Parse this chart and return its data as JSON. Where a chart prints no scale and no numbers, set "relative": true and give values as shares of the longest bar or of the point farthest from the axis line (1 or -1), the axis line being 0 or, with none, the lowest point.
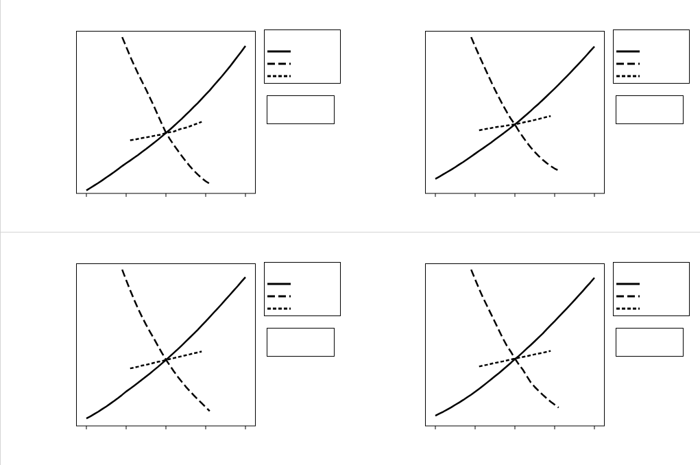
{
  "chart_data": [
    {
      "type": "line",
      "relative": true,
      "categories": [
        null,
        null,
        null,
        null,
        null,
        null,
        null,
        null,
        null,
        null,
        null,
        null,
        null,
        null,
        null,
        null,
        null,
        null,
        null,
        null,
        null,
        null,
        null,
        null,
        null,
        null,
        null,
        null,
        null,
        null,
        null,
        null,
        null,
        null,
        null,
        null,
        null,
        null,
        null,
        null,
        null
      ],
      "series": [
        {
          "color": "#000000",
          "line_style": "solid",
          "values": [
            0.019,
            0.035,
            0.051,
            0.067,
            0.084,
            0.102,
            0.119,
            0.137,
            0.156,
            0.175,
            0.193,
            0.21,
            0.228,
            0.246,
            0.265,
            0.284,
            0.304,
            0.324,
            0.344,
            0.365,
            0.387,
            0.408,
            0.431,
            0.455,
            0.478,
            0.503,
            0.527,
            0.553,
            0.578,
            0.605,
            0.632,
            0.659,
            0.689,
            0.718,
            0.747,
            0.778,
            0.809,
            0.842,
            0.875,
            0.908,
            0.943
          ]
        },
        {
          "color": "#000000",
          "line_style": "dashed",
          "values": [
            null,
            null,
            null,
            null,
            null,
            null,
            null,
            null,
            null,
            1,
            0.939,
            0.877,
            0.821,
            0.766,
            0.715,
            0.665,
            0.611,
            0.557,
            0.5,
            0.443,
            0.389,
            0.347,
            0.309,
            0.274,
            0.239,
            0.206,
            0.175,
            0.146,
            0.121,
            0.098,
            0.078,
            0.062,
            null,
            null,
            null,
            null,
            null,
            null,
            null,
            null,
            null
          ]
        },
        {
          "color": "#000000",
          "line_style": "dotted",
          "values": [
            null,
            null,
            null,
            null,
            null,
            null,
            null,
            null,
            null,
            null,
            null,
            0.34,
            0.344,
            0.349,
            0.354,
            0.358,
            0.363,
            0.368,
            0.373,
            0.377,
            0.387,
            0.392,
            0.396,
            0.406,
            0.415,
            0.42,
            0.429,
            0.439,
            0.448,
            0.458,
            null,
            null,
            null,
            null,
            null,
            null,
            null,
            null,
            null,
            null,
            null
          ]
        }
      ]
    },
    {
      "type": "line",
      "relative": true,
      "categories": [
        null,
        null,
        null,
        null,
        null,
        null,
        null,
        null,
        null,
        null,
        null,
        null,
        null,
        null,
        null,
        null,
        null,
        null,
        null,
        null,
        null,
        null,
        null,
        null,
        null,
        null,
        null,
        null,
        null,
        null,
        null,
        null,
        null,
        null,
        null,
        null,
        null,
        null,
        null,
        null,
        null
      ],
      "series": [
        {
          "color": "#000000",
          "line_style": "solid",
          "values": [
            0.093,
            0.107,
            0.122,
            0.137,
            0.152,
            0.168,
            0.185,
            0.201,
            0.218,
            0.236,
            0.254,
            0.272,
            0.289,
            0.307,
            0.325,
            0.344,
            0.363,
            0.382,
            0.401,
            0.421,
            0.441,
            0.462,
            0.484,
            0.506,
            0.528,
            0.552,
            0.574,
            0.598,
            0.622,
            0.647,
            0.671,
            0.696,
            0.722,
            0.748,
            0.774,
            0.801,
            0.828,
            0.855,
            0.883,
            0.912,
            0.94
          ]
        },
        {
          "color": "#000000",
          "line_style": "dashed",
          "values": [
            null,
            null,
            null,
            null,
            null,
            null,
            null,
            null,
            null,
            1,
            0.94,
            0.883,
            0.827,
            0.771,
            0.716,
            0.663,
            0.613,
            0.564,
            0.519,
            0.477,
            0.441,
            0.399,
            0.362,
            0.326,
            0.294,
            0.265,
            0.239,
            0.215,
            0.194,
            0.175,
            0.159,
            0.146,
            null,
            null,
            null,
            null,
            null,
            null,
            null,
            null,
            null
          ]
        },
        {
          "color": "#000000",
          "line_style": "dotted",
          "values": [
            null,
            null,
            null,
            null,
            null,
            null,
            null,
            null,
            null,
            null,
            null,
            0.404,
            0.409,
            0.414,
            0.418,
            0.423,
            0.427,
            0.43,
            0.434,
            0.438,
            0.442,
            0.447,
            0.453,
            0.459,
            0.464,
            0.47,
            0.476,
            0.483,
            0.489,
            0.495,
            null,
            null,
            null,
            null,
            null,
            null,
            null,
            null,
            null,
            null,
            null
          ]
        }
      ]
    },
    {
      "type": "line",
      "relative": true,
      "categories": [
        null,
        null,
        null,
        null,
        null,
        null,
        null,
        null,
        null,
        null,
        null,
        null,
        null,
        null,
        null,
        null,
        null,
        null,
        null,
        null,
        null,
        null,
        null,
        null,
        null,
        null,
        null,
        null,
        null,
        null,
        null,
        null,
        null,
        null,
        null,
        null,
        null,
        null,
        null,
        null,
        null
      ],
      "series": [
        {
          "color": "#000000",
          "line_style": "solid",
          "values": [
            0.048,
            0.061,
            0.076,
            0.091,
            0.108,
            0.124,
            0.142,
            0.16,
            0.179,
            0.199,
            0.22,
            0.238,
            0.257,
            0.276,
            0.296,
            0.316,
            0.336,
            0.357,
            0.378,
            0.4,
            0.422,
            0.445,
            0.468,
            0.491,
            0.515,
            0.54,
            0.565,
            0.59,
            0.615,
            0.642,
            0.669,
            0.696,
            0.724,
            0.751,
            0.779,
            0.808,
            0.836,
            0.865,
            0.893,
            0.923,
            0.952
          ]
        },
        {
          "color": "#000000",
          "line_style": "dashed",
          "values": [
            null,
            null,
            null,
            null,
            null,
            null,
            null,
            null,
            null,
            1,
            0.933,
            0.869,
            0.808,
            0.75,
            0.697,
            0.648,
            0.602,
            0.558,
            0.512,
            0.467,
            0.424,
            0.386,
            0.349,
            0.314,
            0.282,
            0.251,
            0.223,
            0.196,
            0.17,
            0.145,
            0.12,
            0.095,
            null,
            null,
            null,
            null,
            null,
            null,
            null,
            null,
            null
          ]
        },
        {
          "color": "#000000",
          "line_style": "dotted",
          "values": [
            null,
            null,
            null,
            null,
            null,
            null,
            null,
            null,
            null,
            null,
            null,
            0.368,
            0.373,
            0.379,
            0.386,
            0.391,
            0.397,
            0.404,
            0.41,
            0.415,
            0.422,
            0.428,
            0.434,
            0.44,
            0.446,
            0.452,
            0.458,
            0.465,
            0.47,
            0.476,
            null,
            null,
            null,
            null,
            null,
            null,
            null,
            null,
            null,
            null,
            null
          ]
        }
      ]
    },
    {
      "type": "line",
      "relative": true,
      "categories": [
        null,
        null,
        null,
        null,
        null,
        null,
        null,
        null,
        null,
        null,
        null,
        null,
        null,
        null,
        null,
        null,
        null,
        null,
        null,
        null,
        null,
        null,
        null,
        null,
        null,
        null,
        null,
        null,
        null,
        null,
        null,
        null,
        null,
        null,
        null,
        null,
        null,
        null,
        null,
        null,
        null
      ],
      "series": [
        {
          "color": "#000000",
          "line_style": "solid",
          "values": [
            0.065,
            0.078,
            0.091,
            0.105,
            0.119,
            0.135,
            0.15,
            0.166,
            0.183,
            0.2,
            0.218,
            0.237,
            0.257,
            0.277,
            0.297,
            0.318,
            0.338,
            0.36,
            0.382,
            0.404,
            0.427,
            0.448,
            0.471,
            0.495,
            0.518,
            0.542,
            0.567,
            0.591,
            0.618,
            0.644,
            0.67,
            0.697,
            0.723,
            0.75,
            0.777,
            0.805,
            0.833,
            0.861,
            0.89,
            0.918,
            0.948
          ]
        },
        {
          "color": "#000000",
          "line_style": "dashed",
          "values": [
            null,
            null,
            null,
            null,
            null,
            null,
            null,
            null,
            null,
            1,
            0.938,
            0.877,
            0.82,
            0.768,
            0.716,
            0.664,
            0.611,
            0.559,
            0.512,
            0.474,
            0.431,
            0.393,
            0.36,
            0.318,
            0.278,
            0.249,
            0.224,
            0.199,
            0.176,
            0.155,
            0.136,
            0.117,
            null,
            null,
            null,
            null,
            null,
            null,
            null,
            null,
            null
          ]
        },
        {
          "color": "#000000",
          "line_style": "dotted",
          "values": [
            null,
            null,
            null,
            null,
            null,
            null,
            null,
            null,
            null,
            null,
            null,
            0.38,
            0.386,
            0.391,
            0.397,
            0.403,
            0.408,
            0.413,
            0.419,
            0.425,
            0.43,
            0.436,
            0.441,
            0.446,
            0.452,
            0.458,
            0.463,
            0.468,
            0.474,
            0.48,
            null,
            null,
            null,
            null,
            null,
            null,
            null,
            null,
            null,
            null,
            null
          ]
        }
      ]
    }
  ]
}
